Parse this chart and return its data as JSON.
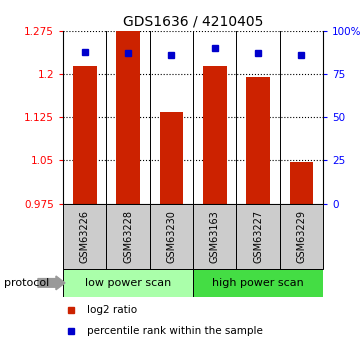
{
  "title": "GDS1636 / 4210405",
  "samples": [
    "GSM63226",
    "GSM63228",
    "GSM63230",
    "GSM63163",
    "GSM63227",
    "GSM63229"
  ],
  "log2_ratio": [
    1.215,
    1.275,
    1.135,
    1.215,
    1.195,
    1.048
  ],
  "percentile_rank": [
    88,
    87,
    86,
    90,
    87,
    86
  ],
  "ylim_left": [
    0.975,
    1.275
  ],
  "ylim_right": [
    0,
    100
  ],
  "yticks_left": [
    0.975,
    1.05,
    1.125,
    1.2,
    1.275
  ],
  "yticks_right": [
    0,
    25,
    50,
    75,
    100
  ],
  "ytick_labels_left": [
    "0.975",
    "1.05",
    "1.125",
    "1.2",
    "1.275"
  ],
  "ytick_labels_right": [
    "0",
    "25",
    "50",
    "75",
    "100%"
  ],
  "dotted_yticks": [
    1.05,
    1.125,
    1.2,
    1.275
  ],
  "bar_color": "#cc2200",
  "dot_color": "#0000cc",
  "bar_baseline": 0.975,
  "bar_width": 0.55,
  "protocol_groups": [
    {
      "label": "low power scan",
      "color": "#aaffaa",
      "start": 0,
      "end": 3
    },
    {
      "label": "high power scan",
      "color": "#44dd44",
      "start": 3,
      "end": 6
    }
  ],
  "sample_box_color": "#cccccc",
  "legend_red_label": "log2 ratio",
  "legend_blue_label": "percentile rank within the sample",
  "protocol_label": "protocol"
}
